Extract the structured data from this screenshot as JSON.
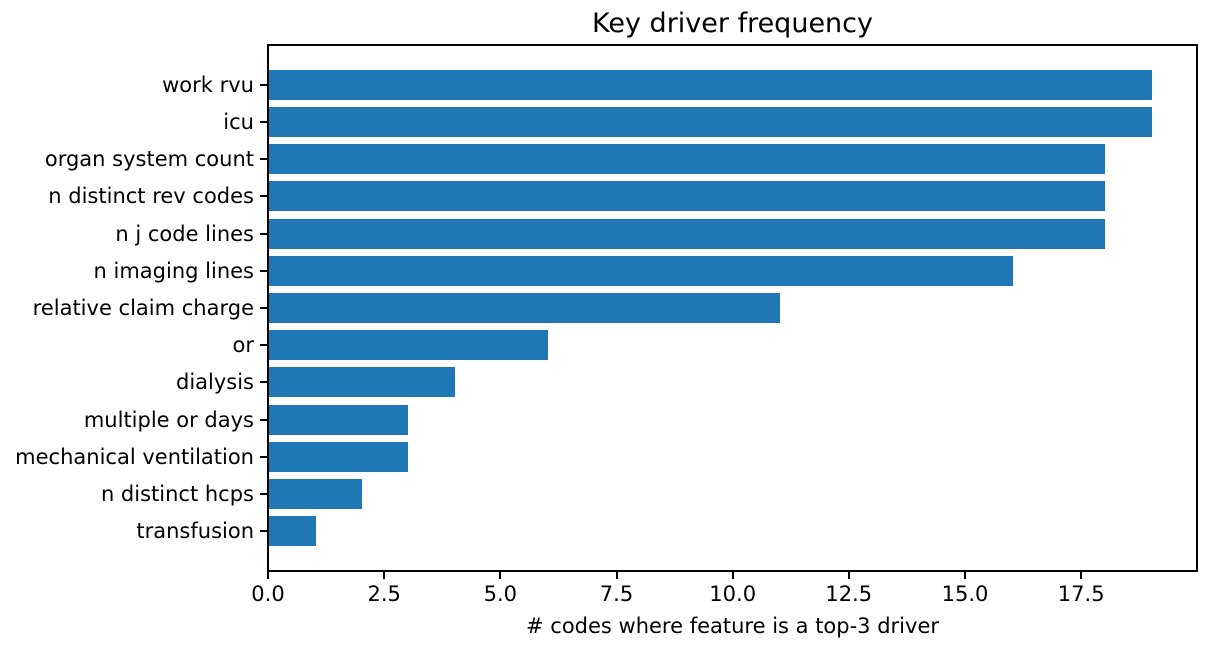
{
  "chart_data": {
    "type": "bar",
    "orientation": "horizontal",
    "title": "Key driver frequency",
    "xlabel": "# codes where feature is a top-3 driver",
    "ylabel": "",
    "categories": [
      "work rvu",
      "icu",
      "organ system count",
      "n distinct rev codes",
      "n j code lines",
      "n imaging lines",
      "relative claim charge",
      "or",
      "dialysis",
      "multiple or days",
      "mechanical ventilation",
      "n distinct hcps",
      "transfusion"
    ],
    "values": [
      19,
      19,
      18,
      18,
      18,
      16,
      11,
      6,
      4,
      3,
      3,
      2,
      1
    ],
    "xlim": [
      0,
      19.95
    ],
    "xticks": [
      0.0,
      2.5,
      5.0,
      7.5,
      10.0,
      12.5,
      15.0,
      17.5
    ],
    "xtick_labels": [
      "0.0",
      "2.5",
      "5.0",
      "7.5",
      "10.0",
      "12.5",
      "15.0",
      "17.5"
    ],
    "bar_color": "#1f77b4",
    "spine_color": "#000000",
    "text_color": "#000000",
    "grid": false,
    "legend": "none"
  }
}
